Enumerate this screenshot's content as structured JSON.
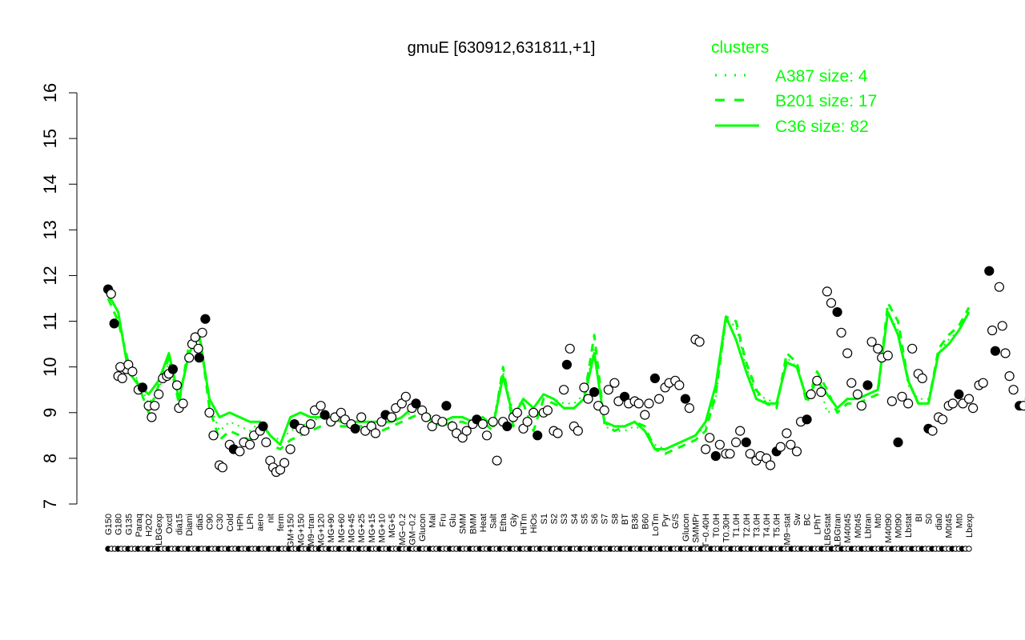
{
  "chart_data": {
    "type": "line",
    "title": "gmuE [630912,631811,+1]",
    "xlabel": "",
    "ylabel": "",
    "ylim": [
      7,
      16
    ],
    "yticks": [
      7,
      8,
      9,
      10,
      11,
      12,
      13,
      14,
      15,
      16
    ],
    "grid": false,
    "legend": {
      "title": "clusters",
      "placement": "top-right",
      "entries": [
        {
          "label": "A387 size: 4",
          "style": "dotted"
        },
        {
          "label": "B201 size: 17",
          "style": "dashed"
        },
        {
          "label": "C36 size: 82",
          "style": "solid"
        }
      ]
    },
    "x_tick_labels": [
      "G150",
      "G180",
      "G135",
      "Paraq",
      "H2O2",
      "LBGexp",
      "Oxctl",
      "dia15",
      "Diami",
      "dia5",
      "C90",
      "C30",
      "Cold",
      "HPh",
      "LPh",
      "aero",
      "nit",
      "ferm",
      "GM+150",
      "MG+150",
      "M9−tran",
      "MG+120",
      "MG+90",
      "MG+60",
      "MG+45",
      "MG+25",
      "MG+15",
      "MG+10",
      "MG+5",
      "MG−0.2",
      "GM−0.2",
      "Glucon",
      "Mal",
      "Fru",
      "Glu",
      "SMM",
      "BMM",
      "Heat",
      "Salt",
      "Etha",
      "Gly",
      "HiTm",
      "HiOs",
      "S1",
      "S2",
      "S3",
      "S4",
      "S5",
      "S6",
      "S7",
      "S8",
      "BT",
      "B36",
      "B60",
      "LoTm",
      "Pyr",
      "G/S",
      "Glucon",
      "SMMPr",
      "T−0.40H",
      "T0.0H",
      "T0.30H",
      "T1.0H",
      "T2.0H",
      "T3.0H",
      "T4.0H",
      "T5.0H",
      "M9−stat",
      "Sw",
      "BC",
      "LPhT",
      "LBGstat",
      "LBGtran",
      "M40t45",
      "M0t45",
      "Lbtran",
      "Mt0",
      "M40t90",
      "M0t90",
      "Lbstat",
      "BI",
      "S0",
      "dia0",
      "M0t45",
      "Mt0",
      "Lbexp"
    ],
    "series": [
      {
        "name": "A387 size: 4",
        "color": "#00ff00",
        "style": "dotted",
        "values": [
          11.6,
          11.2,
          10.0,
          9.7,
          9.2,
          9.5,
          10.1,
          9.3,
          10.4,
          10.6,
          9.2,
          8.6,
          8.8,
          8.7,
          8.6,
          8.8,
          8.5,
          8.4,
          8.6,
          8.7,
          8.8,
          8.9,
          8.9,
          8.8,
          8.8,
          8.8,
          8.8,
          8.8,
          8.8,
          8.9,
          9.0,
          9.1,
          8.9,
          8.8,
          8.9,
          8.9,
          8.8,
          8.9,
          8.8,
          9.9,
          9.0,
          9.3,
          9.1,
          9.4,
          9.3,
          9.2,
          9.2,
          9.4,
          10.4,
          8.7,
          8.6,
          8.6,
          8.7,
          8.6,
          8.3,
          8.2,
          8.3,
          8.4,
          8.5,
          8.7,
          9.3,
          11.0,
          10.9,
          10.0,
          9.4,
          9.3,
          9.2,
          10.2,
          10.0,
          9.3,
          9.8,
          9.0,
          9.1,
          9.3,
          9.3,
          9.4,
          9.5,
          11.2,
          10.8,
          9.6,
          9.3,
          9.3,
          10.3,
          10.6,
          10.8,
          11.2
        ]
      },
      {
        "name": "B201 size: 17",
        "color": "#00ff00",
        "style": "dashed",
        "values": [
          11.5,
          11.0,
          10.1,
          9.6,
          9.0,
          9.6,
          10.2,
          9.2,
          10.5,
          10.8,
          9.1,
          8.4,
          8.6,
          8.5,
          8.4,
          8.6,
          8.3,
          8.2,
          8.4,
          8.5,
          8.6,
          8.7,
          8.8,
          8.7,
          8.7,
          8.7,
          8.7,
          8.6,
          8.7,
          8.8,
          8.9,
          9.0,
          8.8,
          8.7,
          8.8,
          8.8,
          8.7,
          8.8,
          8.6,
          10.0,
          8.7,
          9.2,
          8.6,
          9.3,
          9.2,
          9.1,
          9.1,
          9.3,
          10.7,
          8.8,
          8.6,
          8.7,
          8.8,
          8.7,
          8.2,
          8.1,
          8.2,
          8.3,
          8.4,
          8.6,
          9.4,
          11.1,
          11.0,
          10.1,
          9.5,
          9.2,
          9.1,
          10.3,
          10.1,
          9.2,
          9.9,
          9.5,
          9.0,
          9.2,
          9.2,
          9.3,
          9.4,
          11.4,
          11.0,
          9.7,
          9.2,
          9.2,
          10.4,
          10.7,
          10.9,
          11.3
        ]
      },
      {
        "name": "C36 size: 82",
        "color": "#00ff00",
        "style": "solid",
        "values": [
          11.6,
          11.2,
          9.9,
          9.6,
          9.4,
          9.7,
          10.3,
          9.3,
          10.3,
          10.7,
          9.3,
          8.9,
          9.0,
          8.9,
          8.8,
          8.8,
          8.5,
          8.3,
          8.9,
          9.0,
          8.9,
          8.9,
          8.9,
          8.8,
          8.8,
          8.8,
          8.8,
          8.8,
          8.8,
          8.9,
          9.1,
          9.1,
          8.8,
          8.8,
          8.9,
          8.9,
          8.8,
          8.9,
          8.7,
          9.8,
          8.9,
          9.3,
          9.1,
          9.4,
          9.3,
          9.1,
          9.1,
          9.3,
          10.3,
          8.8,
          8.7,
          8.7,
          8.8,
          8.6,
          8.2,
          8.2,
          8.3,
          8.4,
          8.5,
          8.8,
          9.6,
          11.1,
          10.6,
          9.9,
          9.3,
          9.2,
          9.2,
          10.1,
          10.0,
          9.3,
          9.7,
          9.4,
          9.1,
          9.3,
          9.3,
          9.4,
          9.5,
          11.2,
          10.7,
          9.7,
          9.2,
          9.2,
          10.3,
          10.5,
          10.8,
          11.2
        ]
      }
    ],
    "points": [
      {
        "x": 0,
        "y": 11.7
      },
      {
        "x": 0.3,
        "y": 11.6
      },
      {
        "x": 0.6,
        "y": 10.95
      },
      {
        "x": 1,
        "y": 9.8
      },
      {
        "x": 1.4,
        "y": 9.75
      },
      {
        "x": 1.8,
        "y": 9.95
      },
      {
        "x": 1.2,
        "y": 10.0
      },
      {
        "x": 2,
        "y": 10.05
      },
      {
        "x": 2.4,
        "y": 9.9
      },
      {
        "x": 3,
        "y": 9.5
      },
      {
        "x": 3.4,
        "y": 9.55
      },
      {
        "x": 4,
        "y": 9.15
      },
      {
        "x": 4.3,
        "y": 8.9
      },
      {
        "x": 4.6,
        "y": 9.15
      },
      {
        "x": 5,
        "y": 9.4
      },
      {
        "x": 5.4,
        "y": 9.75
      },
      {
        "x": 5.8,
        "y": 9.8
      },
      {
        "x": 6,
        "y": 9.85
      },
      {
        "x": 6.4,
        "y": 9.95
      },
      {
        "x": 6.8,
        "y": 9.6
      },
      {
        "x": 7,
        "y": 9.1
      },
      {
        "x": 7.4,
        "y": 9.2
      },
      {
        "x": 8,
        "y": 10.2
      },
      {
        "x": 8.3,
        "y": 10.5
      },
      {
        "x": 8.6,
        "y": 10.65
      },
      {
        "x": 8.9,
        "y": 10.4
      },
      {
        "x": 9,
        "y": 10.2
      },
      {
        "x": 9.3,
        "y": 10.75
      },
      {
        "x": 9.6,
        "y": 11.05
      },
      {
        "x": 10,
        "y": 9.0
      },
      {
        "x": 10.4,
        "y": 8.5
      },
      {
        "x": 11,
        "y": 7.85
      },
      {
        "x": 11.3,
        "y": 7.8
      },
      {
        "x": 12,
        "y": 8.3
      },
      {
        "x": 12.4,
        "y": 8.2
      },
      {
        "x": 13,
        "y": 8.15
      },
      {
        "x": 13.4,
        "y": 8.35
      },
      {
        "x": 14,
        "y": 8.3
      },
      {
        "x": 14.4,
        "y": 8.5
      },
      {
        "x": 15,
        "y": 8.6
      },
      {
        "x": 15.3,
        "y": 8.7
      },
      {
        "x": 15.6,
        "y": 8.35
      },
      {
        "x": 16,
        "y": 7.95
      },
      {
        "x": 16.3,
        "y": 7.8
      },
      {
        "x": 16.6,
        "y": 7.7
      },
      {
        "x": 17,
        "y": 7.75
      },
      {
        "x": 17.4,
        "y": 7.9
      },
      {
        "x": 18,
        "y": 8.2
      },
      {
        "x": 18.4,
        "y": 8.75
      },
      {
        "x": 19,
        "y": 8.65
      },
      {
        "x": 19.4,
        "y": 8.6
      },
      {
        "x": 20,
        "y": 8.75
      },
      {
        "x": 20.4,
        "y": 9.05
      },
      {
        "x": 21,
        "y": 9.15
      },
      {
        "x": 21.4,
        "y": 8.95
      },
      {
        "x": 22,
        "y": 8.8
      },
      {
        "x": 22.4,
        "y": 8.9
      },
      {
        "x": 23,
        "y": 9.0
      },
      {
        "x": 23.4,
        "y": 8.85
      },
      {
        "x": 24,
        "y": 8.75
      },
      {
        "x": 24.4,
        "y": 8.65
      },
      {
        "x": 25,
        "y": 8.9
      },
      {
        "x": 25.4,
        "y": 8.6
      },
      {
        "x": 26,
        "y": 8.7
      },
      {
        "x": 26.4,
        "y": 8.55
      },
      {
        "x": 27,
        "y": 8.8
      },
      {
        "x": 27.4,
        "y": 8.95
      },
      {
        "x": 28,
        "y": 8.9
      },
      {
        "x": 28.4,
        "y": 9.1
      },
      {
        "x": 29,
        "y": 9.2
      },
      {
        "x": 29.4,
        "y": 9.35
      },
      {
        "x": 30,
        "y": 9.1
      },
      {
        "x": 30.4,
        "y": 9.2
      },
      {
        "x": 31,
        "y": 9.05
      },
      {
        "x": 31.4,
        "y": 8.9
      },
      {
        "x": 32,
        "y": 8.7
      },
      {
        "x": 32.4,
        "y": 8.85
      },
      {
        "x": 33,
        "y": 8.8
      },
      {
        "x": 33.4,
        "y": 9.15
      },
      {
        "x": 34,
        "y": 8.7
      },
      {
        "x": 34.4,
        "y": 8.55
      },
      {
        "x": 35,
        "y": 8.45
      },
      {
        "x": 35.4,
        "y": 8.6
      },
      {
        "x": 36,
        "y": 8.75
      },
      {
        "x": 36.4,
        "y": 8.85
      },
      {
        "x": 37,
        "y": 8.75
      },
      {
        "x": 37.4,
        "y": 8.5
      },
      {
        "x": 38,
        "y": 8.8
      },
      {
        "x": 38.4,
        "y": 7.95
      },
      {
        "x": 39,
        "y": 8.8
      },
      {
        "x": 39.4,
        "y": 8.7
      },
      {
        "x": 40,
        "y": 8.9
      },
      {
        "x": 40.4,
        "y": 9.0
      },
      {
        "x": 41,
        "y": 8.65
      },
      {
        "x": 41.4,
        "y": 8.8
      },
      {
        "x": 42,
        "y": 9.0
      },
      {
        "x": 42.4,
        "y": 8.5
      },
      {
        "x": 43,
        "y": 9.0
      },
      {
        "x": 43.4,
        "y": 9.05
      },
      {
        "x": 44,
        "y": 8.6
      },
      {
        "x": 44.4,
        "y": 8.55
      },
      {
        "x": 45,
        "y": 9.5
      },
      {
        "x": 45.3,
        "y": 10.05
      },
      {
        "x": 45.6,
        "y": 10.4
      },
      {
        "x": 46,
        "y": 8.7
      },
      {
        "x": 46.4,
        "y": 8.6
      },
      {
        "x": 47,
        "y": 9.55
      },
      {
        "x": 47.4,
        "y": 9.3
      },
      {
        "x": 48,
        "y": 9.45
      },
      {
        "x": 48.4,
        "y": 9.15
      },
      {
        "x": 49,
        "y": 9.05
      },
      {
        "x": 49.4,
        "y": 9.5
      },
      {
        "x": 50,
        "y": 9.65
      },
      {
        "x": 50.4,
        "y": 9.25
      },
      {
        "x": 51,
        "y": 9.35
      },
      {
        "x": 51.4,
        "y": 9.2
      },
      {
        "x": 52,
        "y": 9.25
      },
      {
        "x": 52.4,
        "y": 9.2
      },
      {
        "x": 53,
        "y": 8.95
      },
      {
        "x": 53.4,
        "y": 9.2
      },
      {
        "x": 54,
        "y": 9.75
      },
      {
        "x": 54.4,
        "y": 9.3
      },
      {
        "x": 55,
        "y": 9.55
      },
      {
        "x": 55.4,
        "y": 9.65
      },
      {
        "x": 56,
        "y": 9.7
      },
      {
        "x": 56.4,
        "y": 9.6
      },
      {
        "x": 57,
        "y": 9.3
      },
      {
        "x": 57.4,
        "y": 9.1
      },
      {
        "x": 58,
        "y": 10.6
      },
      {
        "x": 58.4,
        "y": 10.55
      },
      {
        "x": 59,
        "y": 8.2
      },
      {
        "x": 59.4,
        "y": 8.45
      },
      {
        "x": 60,
        "y": 8.05
      },
      {
        "x": 60.4,
        "y": 8.3
      },
      {
        "x": 61,
        "y": 8.1
      },
      {
        "x": 61.4,
        "y": 8.1
      },
      {
        "x": 62,
        "y": 8.35
      },
      {
        "x": 62.4,
        "y": 8.6
      },
      {
        "x": 63,
        "y": 8.35
      },
      {
        "x": 63.4,
        "y": 8.1
      },
      {
        "x": 64,
        "y": 7.95
      },
      {
        "x": 64.4,
        "y": 8.05
      },
      {
        "x": 65,
        "y": 8.0
      },
      {
        "x": 65.4,
        "y": 7.85
      },
      {
        "x": 66,
        "y": 8.15
      },
      {
        "x": 66.4,
        "y": 8.25
      },
      {
        "x": 67,
        "y": 8.55
      },
      {
        "x": 67.4,
        "y": 8.3
      },
      {
        "x": 68,
        "y": 8.15
      },
      {
        "x": 68.4,
        "y": 8.8
      },
      {
        "x": 69,
        "y": 8.85
      },
      {
        "x": 69.4,
        "y": 9.4
      },
      {
        "x": 70,
        "y": 9.7
      },
      {
        "x": 70.4,
        "y": 9.45
      },
      {
        "x": 71,
        "y": 11.65
      },
      {
        "x": 71.4,
        "y": 11.4
      },
      {
        "x": 72,
        "y": 11.2
      },
      {
        "x": 72.4,
        "y": 10.75
      },
      {
        "x": 73,
        "y": 10.3
      },
      {
        "x": 73.4,
        "y": 9.65
      },
      {
        "x": 74,
        "y": 9.4
      },
      {
        "x": 74.4,
        "y": 9.15
      },
      {
        "x": 75,
        "y": 9.6
      },
      {
        "x": 75.4,
        "y": 10.55
      },
      {
        "x": 76,
        "y": 10.4
      },
      {
        "x": 76.4,
        "y": 10.2
      },
      {
        "x": 77,
        "y": 10.25
      },
      {
        "x": 77.4,
        "y": 9.25
      },
      {
        "x": 78,
        "y": 8.35
      },
      {
        "x": 78.4,
        "y": 9.35
      },
      {
        "x": 79,
        "y": 9.2
      },
      {
        "x": 79.4,
        "y": 10.4
      },
      {
        "x": 80,
        "y": 9.85
      },
      {
        "x": 80.4,
        "y": 9.75
      },
      {
        "x": 81,
        "y": 8.65
      },
      {
        "x": 81.4,
        "y": 8.6
      },
      {
        "x": 82,
        "y": 8.9
      },
      {
        "x": 82.4,
        "y": 8.85
      },
      {
        "x": 83,
        "y": 9.15
      },
      {
        "x": 83.4,
        "y": 9.2
      },
      {
        "x": 84,
        "y": 9.4
      },
      {
        "x": 84.4,
        "y": 9.2
      },
      {
        "x": 85,
        "y": 9.3
      },
      {
        "x": 85.4,
        "y": 9.1
      },
      {
        "x": 86,
        "y": 9.6
      },
      {
        "x": 86.4,
        "y": 9.65
      },
      {
        "x": 87,
        "y": 12.1
      },
      {
        "x": 87.3,
        "y": 10.8
      },
      {
        "x": 87.6,
        "y": 10.35
      },
      {
        "x": 88,
        "y": 11.75
      },
      {
        "x": 88.3,
        "y": 10.9
      },
      {
        "x": 88.6,
        "y": 10.3
      },
      {
        "x": 89,
        "y": 9.8
      },
      {
        "x": 89.4,
        "y": 9.5
      },
      {
        "x": 90,
        "y": 9.15
      },
      {
        "x": 90.4,
        "y": 9.15
      },
      {
        "x": 91,
        "y": 9.3
      },
      {
        "x": 91.3,
        "y": 9.2
      },
      {
        "x": 91.6,
        "y": 9.25
      },
      {
        "x": 92,
        "y": 10.6
      },
      {
        "x": 92.3,
        "y": 10.3
      },
      {
        "x": 92.6,
        "y": 10.95
      },
      {
        "x": 93,
        "y": 11.15
      },
      {
        "x": 93.3,
        "y": 11.0
      },
      {
        "x": 93.6,
        "y": 10.95
      },
      {
        "x": 94,
        "y": 11.3
      },
      {
        "x": 94.4,
        "y": 11.6
      }
    ]
  }
}
